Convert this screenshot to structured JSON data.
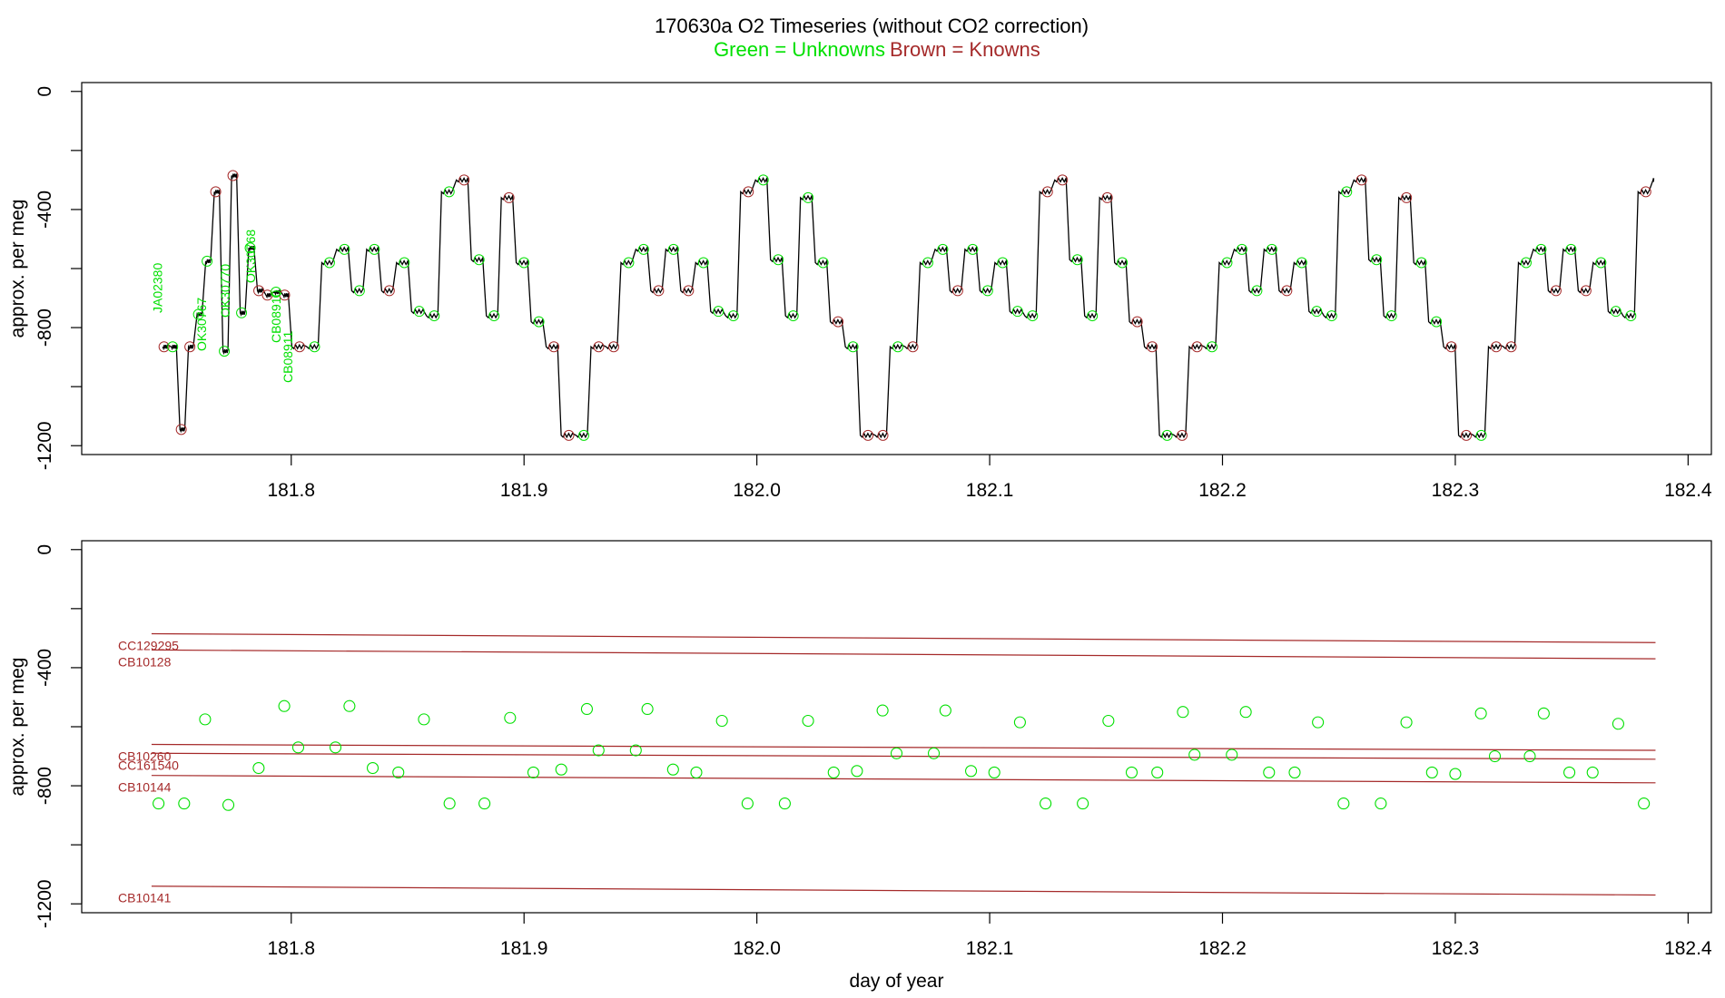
{
  "title": "170630a   O2 Timeseries (without CO2 correction)",
  "subtitle_unknowns": "Green = Unknowns",
  "subtitle_knowns": "Brown = Knowns",
  "colors": {
    "unknowns": "#00e000",
    "knowns": "#a52a2a",
    "trace": "#000000"
  },
  "chart_data": [
    {
      "type": "line",
      "ylabel": "approx. per meg",
      "xlabel": "",
      "xlim": [
        181.71,
        182.41
      ],
      "ylim": [
        -1230,
        30
      ],
      "x_ticks": [
        181.8,
        181.9,
        182.0,
        182.1,
        182.2,
        182.3,
        182.4
      ],
      "x_tick_labels": [
        "181.8",
        "181.9",
        "182.0",
        "182.1",
        "182.2",
        "182.3",
        "182.4"
      ],
      "y_ticks": [
        0,
        -400,
        -800,
        -1200
      ],
      "y_tick_labels": [
        "0",
        "-400",
        "-800",
        "-1200"
      ],
      "y_minor_ticks": [
        -200,
        -600,
        -1000
      ],
      "start": 181.744,
      "end": 182.386,
      "repeat_period": 0.1285,
      "cycle_levels": [
        -865,
        -865,
        -580,
        -535,
        -675,
        -535,
        -675,
        -580,
        -745,
        -760,
        -340,
        -300,
        -570,
        -760,
        -360,
        -580,
        -780,
        -865,
        -1165,
        -1165
      ],
      "prefix_levels": [
        -865,
        -865,
        -1145,
        -865,
        -755,
        -575,
        -340,
        -880,
        -285,
        -750,
        -530,
        -675,
        -690,
        -680,
        -690
      ],
      "first_cycle_start": 181.7995,
      "run_labels": [
        "JA02380",
        "OK30767",
        "OK30770",
        "OK30768",
        "CB08910",
        "CB08911"
      ],
      "run_label_x": [
        181.7445,
        181.7635,
        181.7735,
        181.7845,
        181.7955,
        181.8005
      ]
    },
    {
      "type": "scatter",
      "ylabel": "approx. per meg",
      "xlabel": "day of year",
      "xlim": [
        181.71,
        182.41
      ],
      "ylim": [
        -1230,
        30
      ],
      "x_ticks": [
        181.8,
        181.9,
        182.0,
        182.1,
        182.2,
        182.3,
        182.4
      ],
      "x_tick_labels": [
        "181.8",
        "181.9",
        "182.0",
        "182.1",
        "182.2",
        "182.3",
        "182.4"
      ],
      "y_ticks": [
        0,
        -400,
        -800,
        -1200
      ],
      "y_tick_labels": [
        "0",
        "-400",
        "-800",
        "-1200"
      ],
      "y_minor_ticks": [
        -200,
        -600,
        -1000
      ],
      "series": [
        {
          "name": "CC129295",
          "x": [
            181.74,
            182.386
          ],
          "y": [
            -285,
            -315
          ]
        },
        {
          "name": "CB10128",
          "x": [
            181.74,
            182.386
          ],
          "y": [
            -340,
            -370
          ]
        },
        {
          "name": "CB10260",
          "x": [
            181.74,
            182.386
          ],
          "y": [
            -660,
            -680
          ]
        },
        {
          "name": "CC161540",
          "x": [
            181.74,
            182.386
          ],
          "y": [
            -690,
            -710
          ]
        },
        {
          "name": "CB10144",
          "x": [
            181.74,
            182.386
          ],
          "y": [
            -765,
            -790
          ]
        },
        {
          "name": "CB10141",
          "x": [
            181.74,
            182.386
          ],
          "y": [
            -1140,
            -1170
          ]
        }
      ],
      "unknowns": {
        "x": [
          181.743,
          181.754,
          181.763,
          181.773,
          181.786,
          181.797,
          181.803,
          181.819,
          181.825,
          181.835,
          181.846,
          181.857,
          181.868,
          181.883,
          181.894,
          181.904,
          181.916,
          181.927,
          181.932,
          181.948,
          181.953,
          181.964,
          181.974,
          181.985,
          181.996,
          182.012,
          182.022,
          182.033,
          182.043,
          182.054,
          182.06,
          182.076,
          182.081,
          182.092,
          182.102,
          182.113,
          182.124,
          182.14,
          182.151,
          182.161,
          182.172,
          182.183,
          182.188,
          182.204,
          182.21,
          182.22,
          182.231,
          182.241,
          182.252,
          182.268,
          182.279,
          182.29,
          182.3,
          182.311,
          182.317,
          182.332,
          182.338,
          182.349,
          182.359,
          182.37,
          182.381
        ],
        "y": [
          -860,
          -860,
          -575,
          -865,
          -740,
          -530,
          -670,
          -670,
          -530,
          -740,
          -755,
          -575,
          -860,
          -860,
          -570,
          -755,
          -745,
          -540,
          -680,
          -680,
          -540,
          -745,
          -755,
          -580,
          -860,
          -860,
          -580,
          -755,
          -750,
          -545,
          -690,
          -690,
          -545,
          -750,
          -755,
          -585,
          -860,
          -860,
          -580,
          -755,
          -755,
          -550,
          -695,
          -695,
          -550,
          -755,
          -755,
          -585,
          -860,
          -860,
          -585,
          -755,
          -760,
          -555,
          -700,
          -700,
          -555,
          -755,
          -755,
          -590,
          -860
        ]
      }
    }
  ]
}
